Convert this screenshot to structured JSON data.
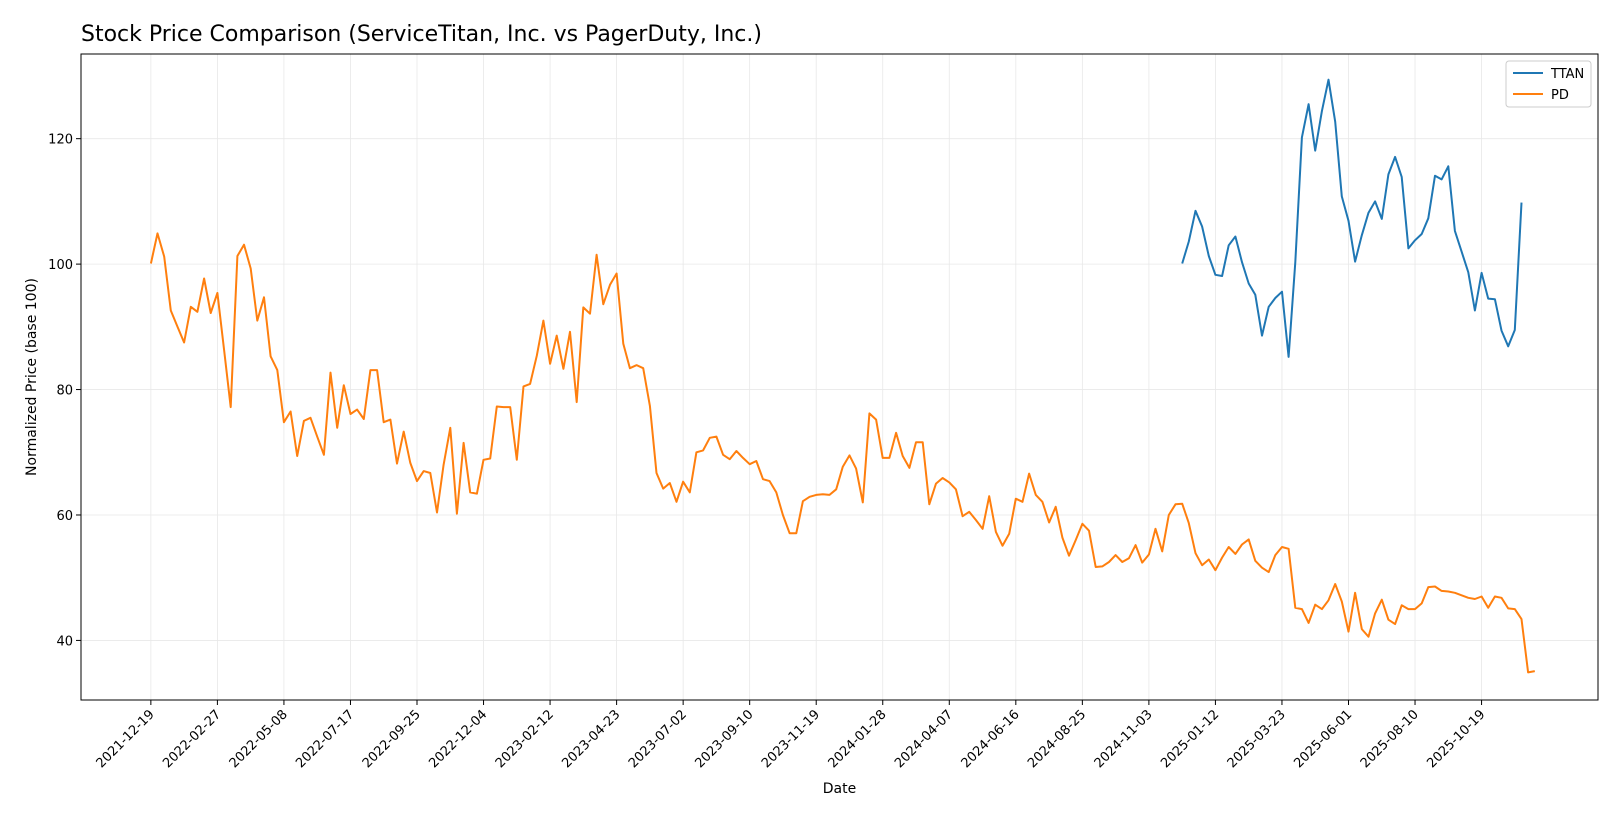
{
  "chart_data": {
    "type": "line",
    "title": "Stock Price Comparison (ServiceTitan, Inc. vs PagerDuty, Inc.)",
    "xlabel": "Date",
    "ylabel": "Normalized Price (base 100)",
    "ylim": [
      30.5,
      133.5
    ],
    "yticks": [
      40,
      60,
      80,
      100,
      120
    ],
    "xlim_week_index": [
      -10.5,
      217.5
    ],
    "xtick_labels": [
      "2021-12-19",
      "2022-02-27",
      "2022-05-08",
      "2022-07-17",
      "2022-09-25",
      "2022-12-04",
      "2023-02-12",
      "2023-04-23",
      "2023-07-02",
      "2023-09-10",
      "2023-11-19",
      "2024-01-28",
      "2024-04-07",
      "2024-06-16",
      "2024-08-25",
      "2024-11-03",
      "2025-01-12",
      "2025-03-23",
      "2025-06-01",
      "2025-08-10",
      "2025-10-19"
    ],
    "xtick_step_weeks": 10,
    "grid": true,
    "legend_position": "top-right",
    "series": [
      {
        "name": "TTAN",
        "color": "#1f77b4",
        "start_week": 155,
        "values": [
          100.1,
          103.6,
          108.5,
          106,
          101.3,
          98.3,
          98.1,
          103,
          104.4,
          100.3,
          96.9,
          95.1,
          88.6,
          93.2,
          94.6,
          95.6,
          85.2,
          100.3,
          120.2,
          125.5,
          118.1,
          124.4,
          129.4,
          122.7,
          110.8,
          106.9,
          100.4,
          104.6,
          108.2,
          110,
          107.2,
          114.3,
          117.1,
          113.9,
          102.5,
          103.8,
          104.8,
          107.3,
          114.1,
          113.5,
          115.6,
          105.3,
          102,
          98.7,
          92.6,
          98.6,
          94.5,
          94.4,
          89.4,
          86.9,
          89.5,
          109.8
        ]
      },
      {
        "name": "PD",
        "color": "#ff7f0e",
        "start_week": 0,
        "values": [
          100.1,
          104.9,
          101.2,
          92.6,
          90,
          87.5,
          93.2,
          92.4,
          97.7,
          92.2,
          95.4,
          86.3,
          77.2,
          101.3,
          103.1,
          99.3,
          91,
          94.7,
          85.3,
          83.1,
          74.8,
          76.5,
          69.4,
          75,
          75.5,
          72.5,
          69.6,
          82.7,
          73.9,
          80.7,
          76.1,
          76.8,
          75.3,
          83.1,
          83.1,
          74.8,
          75.2,
          68.2,
          73.3,
          68.3,
          65.4,
          67,
          66.7,
          60.4,
          68,
          73.9,
          60.2,
          71.5,
          63.6,
          63.4,
          68.8,
          69,
          77.3,
          77.2,
          77.2,
          68.8,
          80.5,
          80.9,
          85.4,
          91,
          84.1,
          88.6,
          83.3,
          89.2,
          78,
          93.1,
          92.1,
          101.5,
          93.6,
          96.7,
          98.5,
          87.3,
          83.4,
          83.9,
          83.4,
          77.4,
          66.7,
          64.2,
          65.1,
          62.1,
          65.3,
          63.6,
          70,
          70.3,
          72.3,
          72.5,
          69.6,
          68.9,
          70.2,
          69.1,
          68.1,
          68.6,
          65.7,
          65.4,
          63.6,
          60,
          57.1,
          57.1,
          62.2,
          62.9,
          63.2,
          63.3,
          63.2,
          64.1,
          67.7,
          69.5,
          67.4,
          62,
          76.2,
          75.2,
          69.1,
          69.1,
          73.1,
          69.4,
          67.5,
          71.6,
          71.6,
          61.7,
          65,
          65.9,
          65.2,
          64.1,
          59.8,
          60.5,
          59.2,
          57.8,
          63,
          57.3,
          55.1,
          57,
          62.6,
          62.1,
          66.6,
          63.2,
          62.1,
          58.8,
          61.3,
          56.4,
          53.5,
          56,
          58.6,
          57.5,
          51.7,
          51.8,
          52.5,
          53.6,
          52.5,
          53.1,
          55.2,
          52.4,
          53.7,
          57.8,
          54.2,
          60,
          61.7,
          61.8,
          58.7,
          53.9,
          52,
          52.9,
          51.2,
          53.2,
          54.9,
          53.8,
          55.3,
          56.1,
          52.7,
          51.6,
          50.9,
          53.6,
          54.9,
          54.6,
          45.2,
          45,
          42.8,
          45.7,
          45,
          46.4,
          49,
          46.2,
          41.4,
          47.6,
          41.8,
          40.6,
          44.3,
          46.5,
          43.3,
          42.6,
          45.6,
          45,
          45,
          45.9,
          48.5,
          48.6,
          47.9,
          47.8,
          47.6,
          47.2,
          46.8,
          46.6,
          47,
          45.2,
          47,
          46.8,
          45.1,
          45,
          43.4,
          34.9,
          35.1
        ]
      }
    ]
  }
}
